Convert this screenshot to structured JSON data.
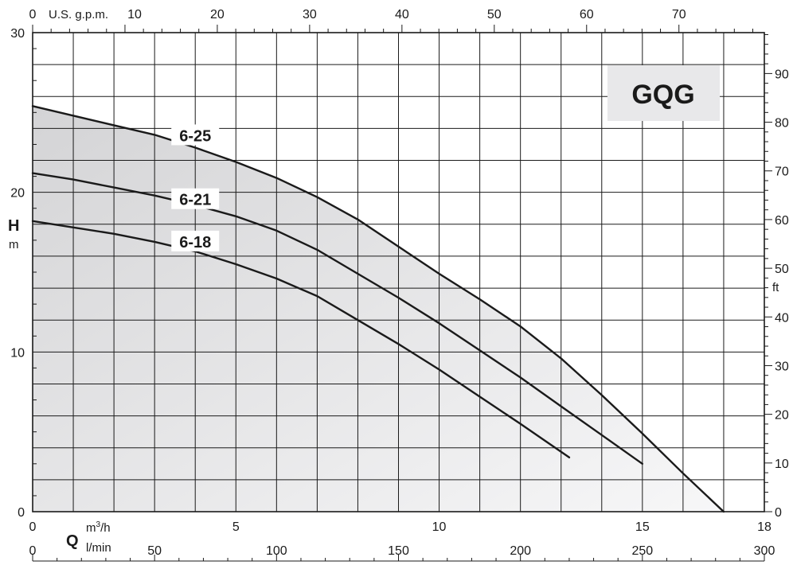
{
  "chart_data": {
    "type": "line",
    "title": "GQG",
    "x_axis": {
      "symbol": "Q",
      "unit": "m³/h",
      "unit_base": "m",
      "unit_sup": "3",
      "unit_tail": "/h",
      "range": [
        0,
        18
      ],
      "ticks": [
        0,
        5,
        10,
        15,
        18
      ]
    },
    "x_axis_lmin": {
      "unit": "l/min",
      "range": [
        0,
        300
      ],
      "ticks": [
        0,
        50,
        100,
        150,
        200,
        250,
        300
      ]
    },
    "x_axis_gpm": {
      "unit": "U.S. g.p.m.",
      "range": [
        0,
        79.25
      ],
      "ticks": [
        0,
        10,
        20,
        30,
        40,
        50,
        60,
        70
      ]
    },
    "y_axis": {
      "symbol": "H",
      "unit": "m",
      "range": [
        0,
        30
      ],
      "ticks": [
        0,
        10,
        20,
        30
      ]
    },
    "y_axis_ft": {
      "unit": "ft",
      "range": [
        0,
        98.4
      ],
      "ticks": [
        0,
        10,
        20,
        30,
        40,
        50,
        60,
        70,
        80,
        90
      ]
    },
    "grid": true,
    "series": [
      {
        "name": "6-25",
        "x": [
          0,
          2,
          3,
          4,
          5,
          6,
          7,
          8,
          9,
          10,
          11,
          12,
          13,
          14,
          15,
          16,
          17
        ],
        "y": [
          25.4,
          24.2,
          23.6,
          22.8,
          21.9,
          20.9,
          19.7,
          18.3,
          16.6,
          14.9,
          13.3,
          11.6,
          9.6,
          7.3,
          4.9,
          2.4,
          0
        ]
      },
      {
        "name": "6-21",
        "x": [
          0,
          1,
          2,
          3,
          4,
          5,
          6,
          7,
          8,
          9,
          10,
          11,
          12,
          13,
          14,
          15
        ],
        "y": [
          21.2,
          20.8,
          20.3,
          19.8,
          19.2,
          18.5,
          17.6,
          16.4,
          14.9,
          13.4,
          11.8,
          10.1,
          8.4,
          6.6,
          4.8,
          3.0
        ]
      },
      {
        "name": "6-18",
        "x": [
          0,
          1,
          2,
          3,
          4,
          5,
          6,
          7,
          8,
          9,
          10,
          11,
          12,
          13.2
        ],
        "y": [
          18.2,
          17.8,
          17.4,
          16.9,
          16.3,
          15.5,
          14.6,
          13.5,
          12.0,
          10.5,
          8.9,
          7.2,
          5.5,
          3.4
        ]
      }
    ]
  }
}
